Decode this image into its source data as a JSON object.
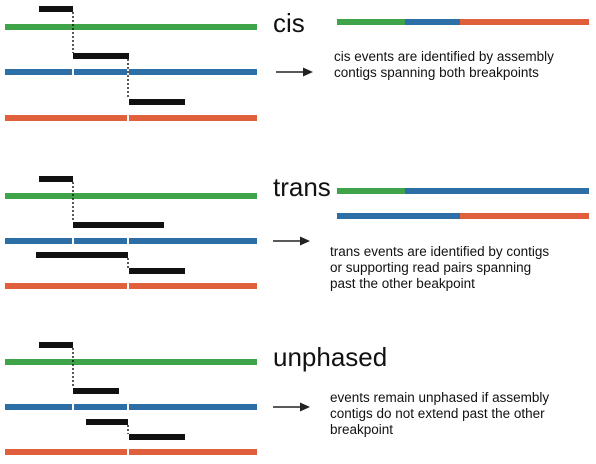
{
  "colors": {
    "chromosome_a": "#3fa34a",
    "chromosome_b": "#2b6fa6",
    "chromosome_c": "#e0603d",
    "contig": "#111111",
    "breakpoint_mark": "#ffffff",
    "arrow": "#222222",
    "text": "#111111"
  },
  "sections": [
    {
      "id": "cis",
      "title": "cis",
      "description_lines": [
        "cis events are identified by assembly",
        "contigs spanning both breakpoints"
      ]
    },
    {
      "id": "trans",
      "title": "trans",
      "description_lines": [
        "trans events are identified by contigs",
        "or supporting read pairs spanning",
        "past the other beakpoint"
      ]
    },
    {
      "id": "unphased",
      "title": "unphased",
      "description_lines": [
        "events remain unphased if assembly",
        "contigs do not extend past the other",
        "breakpoint"
      ]
    }
  ]
}
